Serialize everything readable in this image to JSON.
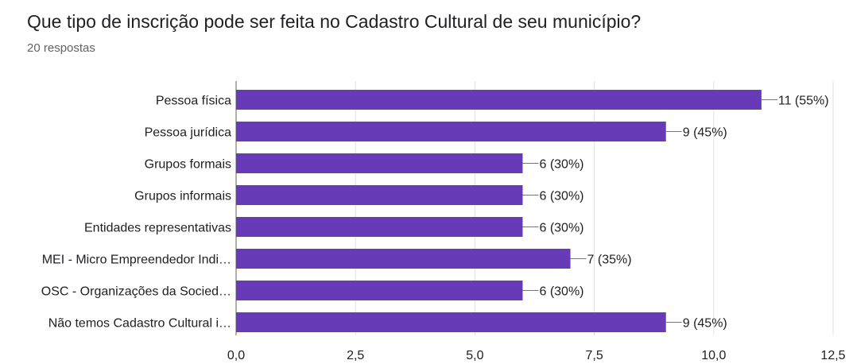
{
  "header": {
    "title": "Que tipo de inscrição pode ser feita no Cadastro Cultural de seu município?",
    "responses": "20 respostas"
  },
  "colors": {
    "bar": "#673ab7",
    "grid": "#e0e0e0",
    "axis": "#616161",
    "leader": "#757575"
  },
  "chart_data": {
    "type": "bar",
    "orientation": "horizontal",
    "categories": [
      "Pessoa física",
      "Pessoa jurídica",
      "Grupos formais",
      "Grupos informais",
      "Entidades representativas",
      "MEI - Micro Empreendedor Indi…",
      "OSC - Organizações da Socied…",
      "Não temos Cadastro Cultural i…"
    ],
    "values": [
      11,
      9,
      6,
      6,
      6,
      7,
      6,
      9
    ],
    "data_labels": [
      "11 (55%)",
      "9 (45%)",
      "6 (30%)",
      "6 (30%)",
      "6 (30%)",
      "7 (35%)",
      "6 (30%)",
      "9 (45%)"
    ],
    "xlim": [
      0,
      12.5
    ],
    "xticks": [
      0,
      2.5,
      5,
      7.5,
      10,
      12.5
    ],
    "xtick_labels": [
      "0,0",
      "2,5",
      "5,0",
      "7,5",
      "10,0",
      "12,5"
    ],
    "grid": true
  }
}
